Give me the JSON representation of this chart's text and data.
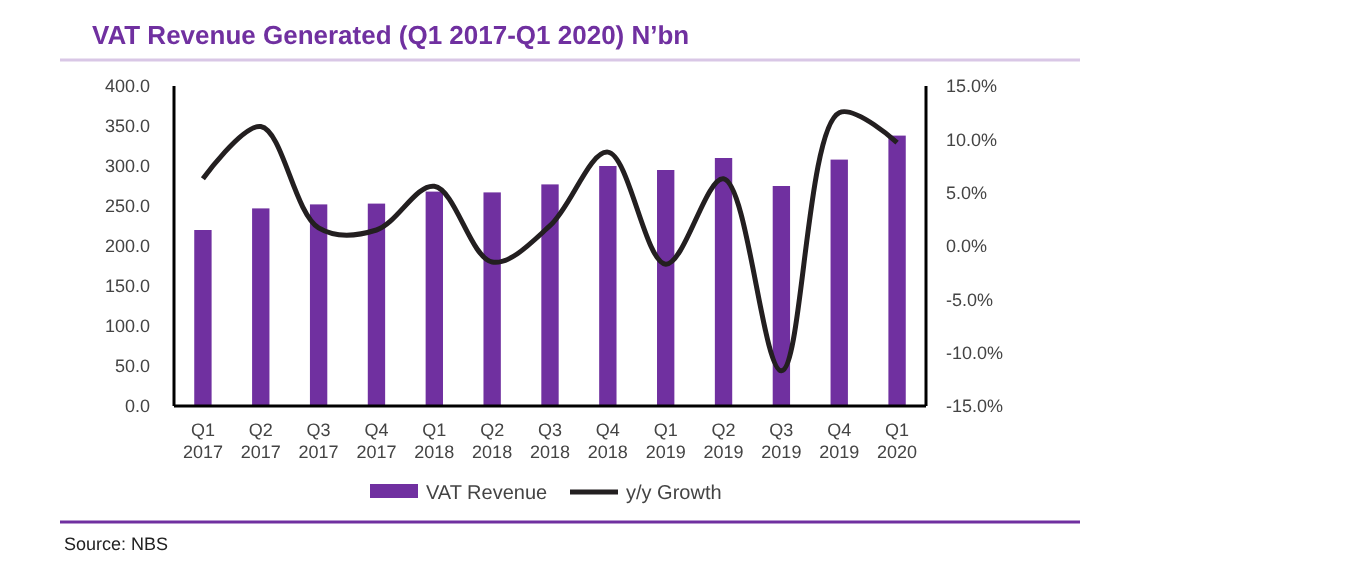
{
  "chart_data": {
    "type": "bar",
    "title": "VAT Revenue Generated (Q1 2017-Q1 2020) N’bn",
    "categories": [
      "Q1\n2017",
      "Q2\n2017",
      "Q3\n2017",
      "Q4\n2017",
      "Q1\n2018",
      "Q2\n2018",
      "Q3\n2018",
      "Q4\n2018",
      "Q1\n2019",
      "Q2\n2019",
      "Q3\n2019",
      "Q4\n2019",
      "Q1\n2020"
    ],
    "series": [
      {
        "name": "VAT Revenue",
        "color": "#7030a0",
        "values": [
          220,
          247,
          252,
          253,
          268,
          267,
          277,
          300,
          295,
          310,
          275,
          308,
          338
        ]
      },
      {
        "name": "y/y Growth",
        "type": "line",
        "axis": "y2",
        "color": "#231f20",
        "values": [
          6.3,
          11.2,
          1.7,
          1.5,
          5.6,
          -1.5,
          1.9,
          8.8,
          -1.7,
          6.3,
          -11.7,
          12.5,
          9.7
        ]
      }
    ],
    "ylim": [
      0,
      400
    ],
    "yticks": [
      {
        "value": 0,
        "label": "0.0"
      },
      {
        "value": 50,
        "label": "50.0"
      },
      {
        "value": 100,
        "label": "100.0"
      },
      {
        "value": 150,
        "label": "150.0"
      },
      {
        "value": 200,
        "label": "200.0"
      },
      {
        "value": 250,
        "label": "250.0"
      },
      {
        "value": 300,
        "label": "300.0"
      },
      {
        "value": 350,
        "label": "350.0"
      },
      {
        "value": 400,
        "label": "400.0"
      }
    ],
    "y2lim": [
      -15,
      15
    ],
    "y2ticks": [
      {
        "value": -15,
        "label": "-15.0%"
      },
      {
        "value": -10,
        "label": "-10.0%"
      },
      {
        "value": -5,
        "label": "-5.0%"
      },
      {
        "value": 0,
        "label": "0.0%"
      },
      {
        "value": 5,
        "label": "5.0%"
      },
      {
        "value": 10,
        "label": "10.0%"
      },
      {
        "value": 15,
        "label": "15.0%"
      }
    ],
    "grid": false,
    "legend": "bottom",
    "marker": "none",
    "line_style": "solid",
    "annotations": [
      "Source: NBS"
    ]
  }
}
